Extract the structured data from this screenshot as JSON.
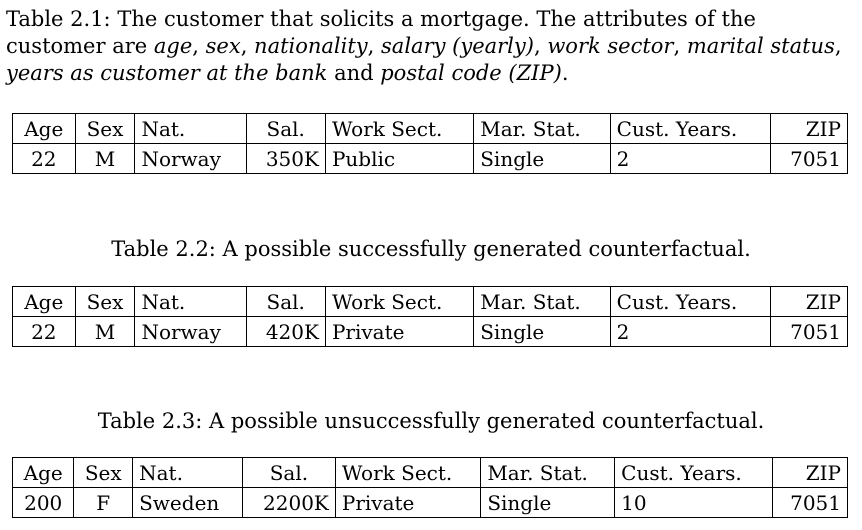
{
  "table1": {
    "caption_label": "Table 2.1:",
    "caption_parts": [
      {
        "text": " The customer that solicits a mortgage. The attributes of the customer are ",
        "italic": false
      },
      {
        "text": "age",
        "italic": true
      },
      {
        "text": ", ",
        "italic": false
      },
      {
        "text": "sex",
        "italic": true
      },
      {
        "text": ", ",
        "italic": false
      },
      {
        "text": "nationality",
        "italic": true
      },
      {
        "text": ", ",
        "italic": false
      },
      {
        "text": "salary (yearly)",
        "italic": true
      },
      {
        "text": ", ",
        "italic": false
      },
      {
        "text": "work sector",
        "italic": true
      },
      {
        "text": ", ",
        "italic": false
      },
      {
        "text": "marital status",
        "italic": true
      },
      {
        "text": ", ",
        "italic": false
      },
      {
        "text": "years as customer at the bank",
        "italic": true
      },
      {
        "text": " and ",
        "italic": false
      },
      {
        "text": "postal code (ZIP)",
        "italic": true
      },
      {
        "text": ".",
        "italic": false
      }
    ],
    "headers": [
      "Age",
      "Sex",
      "Nat.",
      "Sal.",
      "Work Sect.",
      "Mar. Stat.",
      "Cust. Years.",
      "ZIP"
    ],
    "row": [
      "22",
      "M",
      "Norway",
      "350K",
      "Public",
      "Single",
      "2",
      "7051"
    ]
  },
  "table2": {
    "caption": "Table 2.2: A possible successfully generated counterfactual.",
    "headers": [
      "Age",
      "Sex",
      "Nat.",
      "Sal.",
      "Work Sect.",
      "Mar. Stat.",
      "Cust. Years.",
      "ZIP"
    ],
    "row": [
      "22",
      "M",
      "Norway",
      "420K",
      "Private",
      "Single",
      "2",
      "7051"
    ]
  },
  "table3": {
    "caption": "Table 2.3: A possible unsuccessfully generated counterfactual.",
    "headers": [
      "Age",
      "Sex",
      "Nat.",
      "Sal.",
      "Work Sect.",
      "Mar. Stat.",
      "Cust. Years.",
      "ZIP"
    ],
    "row": [
      "200",
      "F",
      "Sweden",
      "2200K",
      "Private",
      "Single",
      "10",
      "7051"
    ]
  }
}
